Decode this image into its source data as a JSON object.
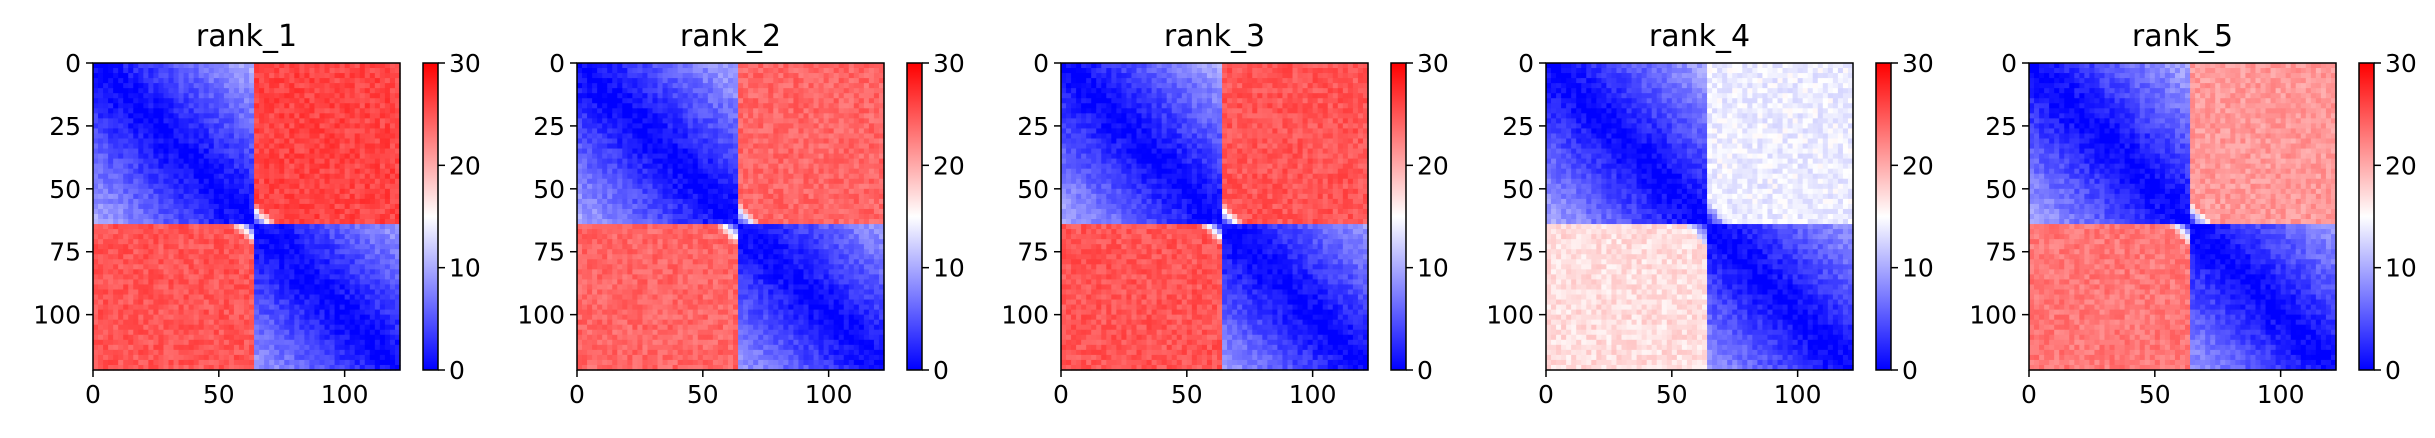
{
  "figure": {
    "name": "distance-matrix-heatmaps"
  },
  "chart_data": [
    {
      "type": "heatmap",
      "title": "rank_1",
      "x_ticks": [
        "0",
        "50",
        "100"
      ],
      "y_ticks": [
        "0",
        "25",
        "50",
        "75",
        "100"
      ],
      "xlim": [
        0,
        122
      ],
      "ylim": [
        122,
        0
      ],
      "colorbar": {
        "ticks": [
          "0",
          "10",
          "20",
          "30"
        ],
        "range": [
          0,
          30
        ],
        "colormap": [
          "#0000ff",
          "#ffffff",
          "#ff0000"
        ]
      },
      "block_boundary": 65,
      "top_cross_block_value": 26,
      "bottom_cross_block_value": 25
    },
    {
      "type": "heatmap",
      "title": "rank_2",
      "x_ticks": [
        "0",
        "50",
        "100"
      ],
      "y_ticks": [
        "0",
        "25",
        "50",
        "75",
        "100"
      ],
      "xlim": [
        0,
        122
      ],
      "ylim": [
        122,
        0
      ],
      "colorbar": {
        "ticks": [
          "0",
          "10",
          "20",
          "30"
        ],
        "range": [
          0,
          30
        ],
        "colormap": [
          "#0000ff",
          "#ffffff",
          "#ff0000"
        ]
      },
      "block_boundary": 65,
      "top_cross_block_value": 24,
      "bottom_cross_block_value": 24
    },
    {
      "type": "heatmap",
      "title": "rank_3",
      "x_ticks": [
        "0",
        "50",
        "100"
      ],
      "y_ticks": [
        "0",
        "25",
        "50",
        "75",
        "100"
      ],
      "xlim": [
        0,
        122
      ],
      "ylim": [
        122,
        0
      ],
      "colorbar": {
        "ticks": [
          "0",
          "10",
          "20",
          "30"
        ],
        "range": [
          0,
          30
        ],
        "colormap": [
          "#0000ff",
          "#ffffff",
          "#ff0000"
        ]
      },
      "block_boundary": 65,
      "top_cross_block_value": 25,
      "bottom_cross_block_value": 25
    },
    {
      "type": "heatmap",
      "title": "rank_4",
      "x_ticks": [
        "0",
        "50",
        "100"
      ],
      "y_ticks": [
        "0",
        "25",
        "50",
        "75",
        "100"
      ],
      "xlim": [
        0,
        122
      ],
      "ylim": [
        122,
        0
      ],
      "colorbar": {
        "ticks": [
          "0",
          "10",
          "20",
          "30"
        ],
        "range": [
          0,
          30
        ],
        "colormap": [
          "#0000ff",
          "#ffffff",
          "#ff0000"
        ]
      },
      "block_boundary": 65,
      "top_cross_block_value": 14,
      "bottom_cross_block_value": 17
    },
    {
      "type": "heatmap",
      "title": "rank_5",
      "x_ticks": [
        "0",
        "50",
        "100"
      ],
      "y_ticks": [
        "0",
        "25",
        "50",
        "75",
        "100"
      ],
      "xlim": [
        0,
        122
      ],
      "ylim": [
        122,
        0
      ],
      "colorbar": {
        "ticks": [
          "0",
          "10",
          "20",
          "30"
        ],
        "range": [
          0,
          30
        ],
        "colormap": [
          "#0000ff",
          "#ffffff",
          "#ff0000"
        ]
      },
      "block_boundary": 65,
      "top_cross_block_value": 21,
      "bottom_cross_block_value": 23
    }
  ]
}
